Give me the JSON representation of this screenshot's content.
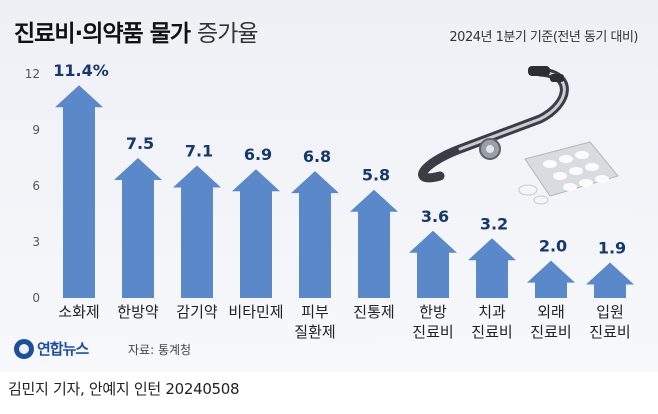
{
  "header": {
    "title_bold": "진료비·의약품 물가",
    "title_light": "증가율",
    "subtitle": "2024년 1분기 기준(전년 동기 대비)"
  },
  "chart_data": {
    "type": "bar",
    "bar_style": "arrow",
    "categories": [
      [
        "소화제"
      ],
      [
        "한방약"
      ],
      [
        "감기약"
      ],
      [
        "비타민제"
      ],
      [
        "피부",
        "질환제"
      ],
      [
        "진통제"
      ],
      [
        "한방",
        "진료비"
      ],
      [
        "치과",
        "진료비"
      ],
      [
        "외래",
        "진료비"
      ],
      [
        "입원",
        "진료비"
      ]
    ],
    "values": [
      11.4,
      7.5,
      7.1,
      6.9,
      6.8,
      5.8,
      3.6,
      3.2,
      2.0,
      1.9
    ],
    "value_labels": [
      "11.4%",
      "7.5",
      "7.1",
      "6.9",
      "6.8",
      "5.8",
      "3.6",
      "3.2",
      "2.0",
      "1.9"
    ],
    "yticks": [
      0,
      3,
      6,
      9,
      12
    ],
    "ylim": [
      0,
      12
    ],
    "bar_color": "#5b88c8",
    "label_color": "#17386b",
    "grid": false
  },
  "footer": {
    "logo": "연합뉴스",
    "source": "자료: 통계청",
    "credit": "김민지 기자, 안예지 인턴  20240508"
  },
  "illustration": {
    "items": [
      "stethoscope-icon",
      "pill-blister-icon"
    ]
  }
}
